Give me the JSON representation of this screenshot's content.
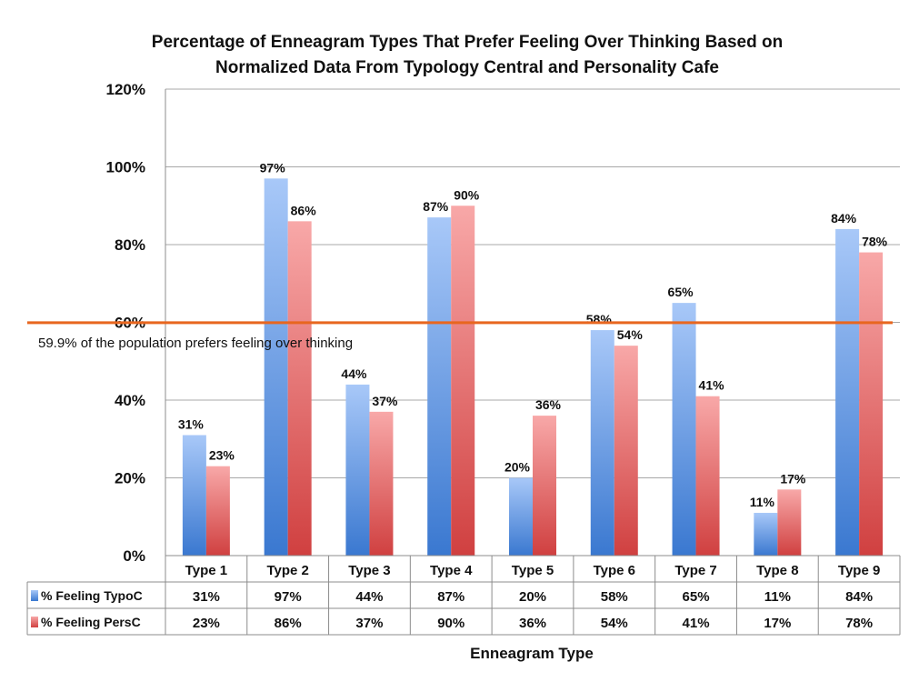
{
  "chart_data": {
    "type": "bar",
    "title_line1": "Percentage of Enneagram Types That Prefer Feeling Over Thinking Based on",
    "title_line2": "Normalized Data From Typology Central and Personality Cafe",
    "xlabel": "Enneagram Type",
    "ylabel": "",
    "ylim": [
      0,
      120
    ],
    "yticks": [
      0,
      20,
      40,
      60,
      80,
      100,
      120
    ],
    "ytick_labels": [
      "0%",
      "20%",
      "40%",
      "60%",
      "80%",
      "100%",
      "120%"
    ],
    "categories": [
      "Type  1",
      "Type 2",
      "Type 3",
      "Type 4",
      "Type 5",
      "Type 6",
      "Type 7",
      "Type 8",
      "Type 9"
    ],
    "series": [
      {
        "name": "% Feeling TypoC",
        "color": "#5b8fe0",
        "values": [
          31,
          97,
          44,
          87,
          20,
          58,
          65,
          11,
          84
        ],
        "labels": [
          "31%",
          "97%",
          "44%",
          "87%",
          "20%",
          "58%",
          "65%",
          "11%",
          "84%"
        ]
      },
      {
        "name": "% Feeling PersC",
        "color": "#e05b5b",
        "values": [
          23,
          86,
          37,
          90,
          36,
          54,
          41,
          17,
          78
        ],
        "labels": [
          "23%",
          "86%",
          "37%",
          "90%",
          "36%",
          "54%",
          "41%",
          "17%",
          "78%"
        ]
      }
    ],
    "reference_line": {
      "value": 59.9,
      "color": "#e8661f",
      "label": "59.9% of the population prefers feeling over thinking"
    },
    "grid": true,
    "legend": "data-table"
  }
}
